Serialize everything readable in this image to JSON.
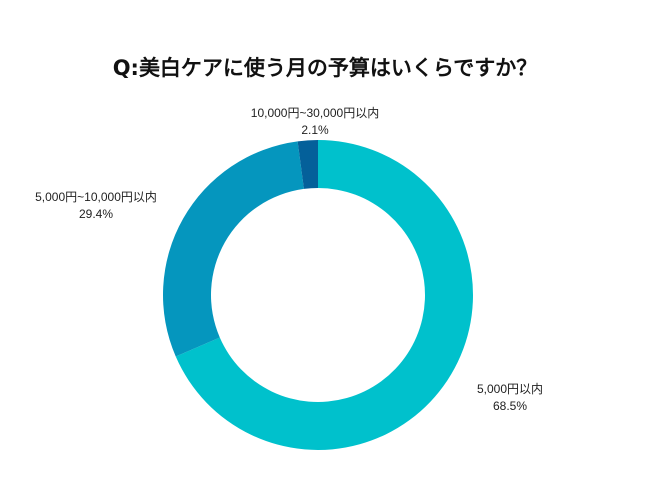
{
  "chart_data": {
    "type": "pie",
    "donut": true,
    "title": "Q:美白ケアに使う月の予算はいくらですか？",
    "categories": [
      "5,000円以内",
      "5,000円~10,000円以内",
      "10,000円~30,000円以内"
    ],
    "values": [
      68.5,
      29.4,
      2.1
    ],
    "value_labels": [
      "68.5%",
      "29.4%",
      "2.1%"
    ],
    "colors": [
      "#00C1CC",
      "#0596BE",
      "#04609A"
    ],
    "direction": "clockwise",
    "start": "top"
  }
}
